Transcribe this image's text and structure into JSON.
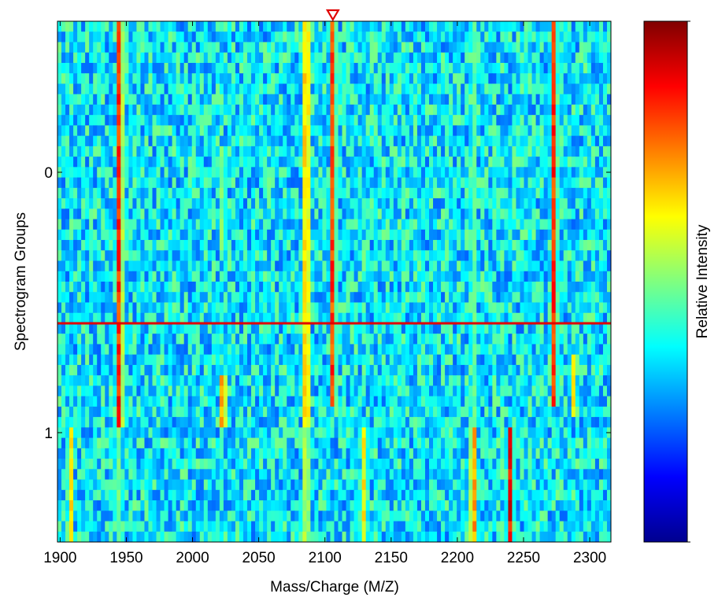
{
  "chart_data": {
    "type": "heatmap",
    "title": "",
    "xlabel": "Mass/Charge (M/Z)",
    "ylabel": "Spectrogram Groups",
    "colorbar_label": "Relative Intensity",
    "colormap": "jet",
    "xlim": [
      1898,
      2316
    ],
    "x_ticks": [
      1900,
      1950,
      2000,
      2050,
      2100,
      2150,
      2200,
      2250,
      2300
    ],
    "ylim": [
      -0.58,
      1.42
    ],
    "y_ticks": [
      0,
      1
    ],
    "y_direction": "down",
    "rows": 50,
    "group_boundary_y": 0.98,
    "selection_line_y": 0.58,
    "selection_marker_x": 2106,
    "selection_color": "#e00000",
    "peaks": [
      {
        "mz": 1945,
        "intensity": 0.95,
        "y_range": [
          -0.58,
          0.98
        ]
      },
      {
        "mz": 1945,
        "intensity": 0.55,
        "y_range": [
          0.98,
          1.42
        ]
      },
      {
        "mz": 1908,
        "intensity": 0.7,
        "y_range": [
          0.98,
          1.42
        ]
      },
      {
        "mz": 2023,
        "intensity": 0.85,
        "y_range": [
          0.8,
          0.97
        ]
      },
      {
        "mz": 2023,
        "intensity": 0.6,
        "y_range": [
          -0.1,
          0.3
        ]
      },
      {
        "mz": 2086,
        "intensity": 0.85,
        "y_range": [
          -0.58,
          0.98
        ]
      },
      {
        "mz": 2086,
        "intensity": 0.7,
        "y_range": [
          0.98,
          1.42
        ]
      },
      {
        "mz": 2106,
        "intensity": 0.9,
        "y_range": [
          -0.58,
          0.9
        ]
      },
      {
        "mz": 2130,
        "intensity": 0.7,
        "y_range": [
          0.98,
          1.42
        ]
      },
      {
        "mz": 2212,
        "intensity": 0.55,
        "y_range": [
          -0.58,
          0.98
        ]
      },
      {
        "mz": 2212,
        "intensity": 0.85,
        "y_range": [
          0.98,
          1.42
        ]
      },
      {
        "mz": 2240,
        "intensity": 0.95,
        "y_range": [
          0.98,
          1.42
        ]
      },
      {
        "mz": 2273,
        "intensity": 0.9,
        "y_range": [
          -0.58,
          0.9
        ]
      },
      {
        "mz": 2288,
        "intensity": 0.7,
        "y_range": [
          0.7,
          0.96
        ]
      }
    ]
  }
}
